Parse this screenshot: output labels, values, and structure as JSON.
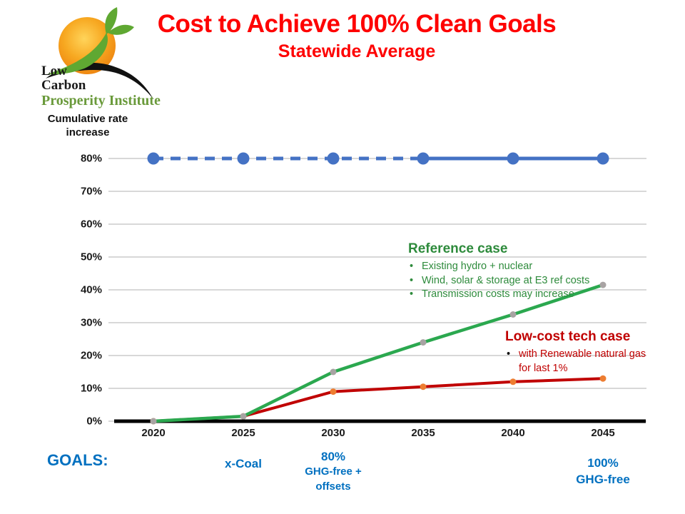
{
  "header": {
    "title": "Cost to Achieve 100% Clean Goals",
    "subtitle": "Statewide Average",
    "title_color": "#FE0000",
    "logo": {
      "line1": "Low",
      "line2": "Carbon",
      "line3": "Prosperity Institute",
      "sun_color": "#F39C12",
      "leaf_color": "#5FA832",
      "text_green": "#6a9a3b"
    }
  },
  "chart_data": {
    "type": "line",
    "x": [
      2020,
      2025,
      2030,
      2035,
      2040,
      2045
    ],
    "ylabel": "Cumulative rate increase",
    "ylim": [
      0,
      80
    ],
    "ytick_step": 10,
    "ytick_suffix": "%",
    "grid": true,
    "gridline_color": "#D8D8D8",
    "axis_color": "#000000",
    "series": [
      {
        "name": "80% goal line",
        "values": [
          80,
          80,
          80,
          80,
          80,
          80
        ],
        "color": "#4472C4",
        "width": 5,
        "marker_color": "#4472C4",
        "marker_radius": 8.5,
        "dash_solid_from_index": 3
      },
      {
        "name": "Low-cost tech case",
        "values": [
          0,
          1.5,
          9,
          10.5,
          12,
          13
        ],
        "color": "#C00000",
        "width": 4,
        "marker_color": "#ED7D31",
        "marker_radius": 4.5
      },
      {
        "name": "Reference case",
        "values": [
          0,
          1.5,
          15,
          24,
          32.5,
          41.5
        ],
        "color": "#2BA84F",
        "width": 4.5,
        "marker_color": "#A8A3A3",
        "marker_radius": 4.5
      }
    ],
    "annotations": {
      "reference": {
        "title": "Reference case",
        "color": "#2E8B3C",
        "bullets": [
          "Existing hydro + nuclear",
          "Wind, solar & storage at E3 ref costs",
          "Transmission costs may increase"
        ]
      },
      "lowcost": {
        "title": "Low-cost tech case",
        "color": "#C00000",
        "bullets": [
          "with Renewable natural gas for last 1%"
        ]
      }
    }
  },
  "goals": {
    "label": "GOALS:",
    "color": "#0070C0",
    "items": [
      {
        "year": 2025,
        "lines": [
          "x-Coal"
        ]
      },
      {
        "year": 2030,
        "lines": [
          "80%",
          "GHG-free +",
          "offsets"
        ]
      },
      {
        "year": 2045,
        "lines": [
          "100%",
          "GHG-free"
        ]
      }
    ]
  }
}
